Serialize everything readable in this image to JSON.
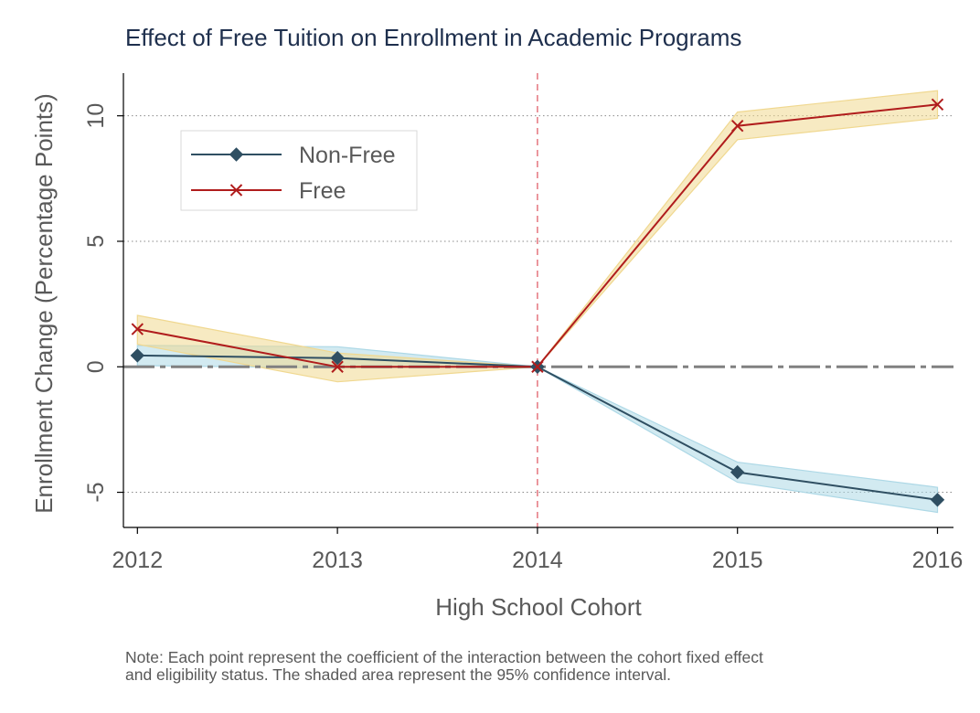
{
  "chart_data": {
    "type": "line",
    "title": "Effect of Free Tuition on Enrollment in Academic Programs",
    "xlabel": "High School Cohort",
    "ylabel": "Enrollment Change (Percentage Points)",
    "categories": [
      "2012",
      "2013",
      "2014",
      "2015",
      "2016"
    ],
    "x": [
      2012,
      2013,
      2014,
      2015,
      2016
    ],
    "xlim": [
      2011.93,
      2016.08
    ],
    "ylim": [
      -6.4,
      11.7
    ],
    "yticks": [
      10,
      5,
      0,
      -5
    ],
    "ytick_labels": [
      "10",
      "5",
      "0",
      "-5"
    ],
    "grid": "horizontal dotted",
    "legend_position": "top-left",
    "reference_lines": {
      "y_zero": "dashed gray",
      "x_2014": "dashed red"
    },
    "series": [
      {
        "name": "Non-Free",
        "marker": "diamond",
        "color": "#2f4f62",
        "band_color": "#add8e6",
        "values": [
          0.45,
          0.35,
          0.0,
          -4.2,
          -5.3
        ],
        "ci_low": [
          0.05,
          -0.05,
          0.0,
          -4.6,
          -5.8
        ],
        "ci_high": [
          0.85,
          0.8,
          0.0,
          -3.8,
          -4.8
        ]
      },
      {
        "name": "Free",
        "marker": "x",
        "color": "#b01c1c",
        "band_color": "#f0d890",
        "values": [
          1.5,
          0.0,
          0.0,
          9.6,
          10.45
        ],
        "ci_low": [
          0.9,
          -0.6,
          0.0,
          9.05,
          9.9
        ],
        "ci_high": [
          2.05,
          0.55,
          0.0,
          10.15,
          11.0
        ]
      }
    ],
    "note": [
      "Note: Each point represent the coefficient of the interaction between the cohort fixed effect",
      "and eligibility status. The shaded area represent the 95% confidence interval."
    ]
  }
}
